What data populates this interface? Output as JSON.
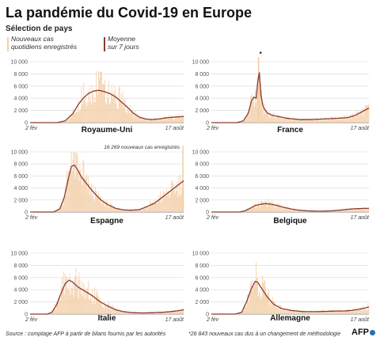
{
  "header": {
    "title": "La pandémie du Covid-19 en Europe",
    "subtitle": "Sélection de pays"
  },
  "legend": {
    "daily_label": "Nouveaux cas\nquotidiens enregistrés",
    "avg_label": "Moyenne\nsur 7 jours",
    "daily_color": "#f3cfa8",
    "avg_color": "#8b3a2e"
  },
  "footer": {
    "source": "Source : comptage AFP à partir de bilans fournis par les autorités",
    "note": "*26 843 nouveaux cas dus à un changement de méthodologie",
    "logo": "AFP"
  },
  "chart_data": [
    {
      "type": "bar",
      "country": "Royaume-Uni",
      "x_start_label": "2 fév",
      "x_end_label": "17 août",
      "days": 198,
      "ylim": [
        0,
        10000
      ],
      "yticks": [
        "0",
        "2 000",
        "4 000",
        "6 000",
        "8 000",
        "10 000"
      ],
      "avg_points": [
        [
          0,
          0
        ],
        [
          35,
          0
        ],
        [
          45,
          300
        ],
        [
          55,
          1500
        ],
        [
          62,
          3000
        ],
        [
          68,
          4000
        ],
        [
          75,
          4800
        ],
        [
          82,
          5200
        ],
        [
          88,
          5300
        ],
        [
          95,
          5100
        ],
        [
          102,
          4800
        ],
        [
          110,
          4200
        ],
        [
          118,
          3300
        ],
        [
          125,
          2500
        ],
        [
          132,
          1600
        ],
        [
          140,
          900
        ],
        [
          148,
          600
        ],
        [
          155,
          500
        ],
        [
          165,
          600
        ],
        [
          175,
          800
        ],
        [
          185,
          900
        ],
        [
          197,
          1000
        ]
      ],
      "annotation": "",
      "marker": null
    },
    {
      "type": "bar",
      "country": "France",
      "x_start_label": "2 fév",
      "x_end_label": "17 août",
      "days": 198,
      "ylim": [
        0,
        10000
      ],
      "yticks": [
        "0",
        "2 000",
        "4 000",
        "6 000",
        "8 000",
        "10 000"
      ],
      "avg_points": [
        [
          0,
          0
        ],
        [
          32,
          0
        ],
        [
          40,
          300
        ],
        [
          46,
          1500
        ],
        [
          50,
          3500
        ],
        [
          53,
          4200
        ],
        [
          56,
          4000
        ],
        [
          58,
          6800
        ],
        [
          60,
          8200
        ],
        [
          62,
          4500
        ],
        [
          65,
          2500
        ],
        [
          70,
          1600
        ],
        [
          76,
          1200
        ],
        [
          84,
          1000
        ],
        [
          95,
          700
        ],
        [
          110,
          500
        ],
        [
          125,
          500
        ],
        [
          140,
          600
        ],
        [
          155,
          700
        ],
        [
          170,
          800
        ],
        [
          180,
          1200
        ],
        [
          190,
          1900
        ],
        [
          197,
          2400
        ]
      ],
      "annotation": "",
      "marker": "*"
    },
    {
      "type": "bar",
      "country": "Espagne",
      "x_start_label": "2 fév",
      "x_end_label": "17 août",
      "days": 198,
      "ylim": [
        0,
        10000
      ],
      "yticks": [
        "0",
        "2 000",
        "4 000",
        "6 000",
        "8 000",
        "10 000"
      ],
      "avg_points": [
        [
          0,
          0
        ],
        [
          30,
          0
        ],
        [
          38,
          500
        ],
        [
          44,
          2500
        ],
        [
          49,
          5500
        ],
        [
          53,
          7600
        ],
        [
          57,
          7800
        ],
        [
          61,
          7000
        ],
        [
          66,
          5800
        ],
        [
          72,
          4800
        ],
        [
          80,
          3500
        ],
        [
          90,
          2100
        ],
        [
          100,
          1200
        ],
        [
          110,
          600
        ],
        [
          120,
          350
        ],
        [
          130,
          300
        ],
        [
          140,
          400
        ],
        [
          150,
          900
        ],
        [
          160,
          1500
        ],
        [
          170,
          2500
        ],
        [
          180,
          3500
        ],
        [
          190,
          4500
        ],
        [
          197,
          5200
        ]
      ],
      "annotation": "16 269 nouveaux cas enregistrés",
      "marker": null
    },
    {
      "type": "bar",
      "country": "Belgique",
      "x_start_label": "2 fév",
      "x_end_label": "17 août",
      "days": 198,
      "ylim": [
        0,
        10000
      ],
      "yticks": [
        "0",
        "2 000",
        "4 000",
        "6 000",
        "8 000",
        "10 000"
      ],
      "avg_points": [
        [
          0,
          0
        ],
        [
          35,
          0
        ],
        [
          42,
          200
        ],
        [
          48,
          600
        ],
        [
          55,
          1100
        ],
        [
          62,
          1300
        ],
        [
          68,
          1400
        ],
        [
          75,
          1300
        ],
        [
          82,
          1100
        ],
        [
          90,
          800
        ],
        [
          100,
          500
        ],
        [
          110,
          300
        ],
        [
          120,
          200
        ],
        [
          130,
          150
        ],
        [
          140,
          150
        ],
        [
          150,
          200
        ],
        [
          160,
          300
        ],
        [
          170,
          450
        ],
        [
          180,
          550
        ],
        [
          190,
          600
        ],
        [
          197,
          600
        ]
      ],
      "annotation": "",
      "marker": null
    },
    {
      "type": "bar",
      "country": "Italie",
      "x_start_label": "2 fév",
      "x_end_label": "17 août",
      "days": 198,
      "ylim": [
        0,
        10000
      ],
      "yticks": [
        "0",
        "2 000",
        "4 000",
        "6 000",
        "8 000",
        "10 000"
      ],
      "avg_points": [
        [
          0,
          0
        ],
        [
          22,
          0
        ],
        [
          28,
          300
        ],
        [
          34,
          1500
        ],
        [
          40,
          3500
        ],
        [
          45,
          5000
        ],
        [
          50,
          5600
        ],
        [
          55,
          5200
        ],
        [
          62,
          4400
        ],
        [
          70,
          3800
        ],
        [
          80,
          3000
        ],
        [
          90,
          2000
        ],
        [
          100,
          1300
        ],
        [
          110,
          700
        ],
        [
          120,
          400
        ],
        [
          130,
          250
        ],
        [
          140,
          200
        ],
        [
          150,
          200
        ],
        [
          160,
          250
        ],
        [
          170,
          300
        ],
        [
          180,
          400
        ],
        [
          190,
          550
        ],
        [
          197,
          700
        ]
      ],
      "annotation": "",
      "marker": null
    },
    {
      "type": "bar",
      "country": "Allemagne",
      "x_start_label": "2 fév",
      "x_end_label": "17 août",
      "days": 198,
      "ylim": [
        0,
        10000
      ],
      "yticks": [
        "0",
        "2 000",
        "4 000",
        "6 000",
        "8 000",
        "10 000"
      ],
      "avg_points": [
        [
          0,
          0
        ],
        [
          30,
          0
        ],
        [
          38,
          300
        ],
        [
          44,
          2000
        ],
        [
          50,
          4200
        ],
        [
          55,
          5400
        ],
        [
          58,
          5200
        ],
        [
          63,
          4200
        ],
        [
          70,
          2800
        ],
        [
          78,
          1600
        ],
        [
          88,
          900
        ],
        [
          100,
          600
        ],
        [
          115,
          400
        ],
        [
          130,
          400
        ],
        [
          145,
          450
        ],
        [
          155,
          500
        ],
        [
          165,
          500
        ],
        [
          175,
          600
        ],
        [
          185,
          800
        ],
        [
          192,
          1000
        ],
        [
          197,
          1200
        ]
      ],
      "annotation": "",
      "marker": null
    }
  ]
}
